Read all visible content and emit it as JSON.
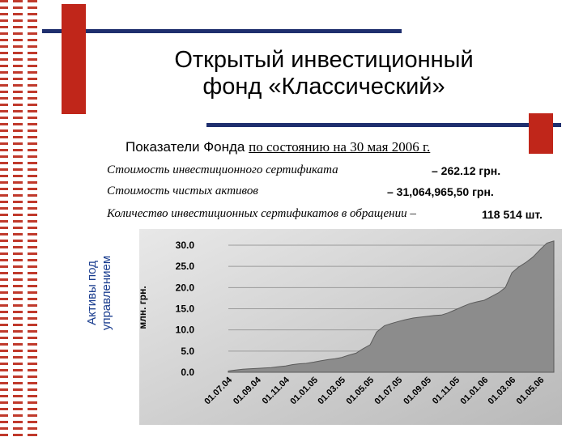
{
  "slide": {
    "title_line1": "Открытый инвестиционный",
    "title_line2": "фонд «Классический»",
    "subtitle_part1": "Показатели Фонда ",
    "subtitle_part2": "по состоянию на 30 мая 2006 г."
  },
  "indicators": [
    {
      "label": "Стоимость инвестиционного сертификата",
      "value": "– 262.12  грн."
    },
    {
      "label": "Стоимость чистых активов",
      "value": "– 31,064,965,50 грн."
    },
    {
      "label": "Количество инвестиционных сертификатов в обращении –",
      "value": "118 514 шт."
    }
  ],
  "side_label": {
    "line1": "Активы под",
    "line2": "управлением"
  },
  "chart_data": {
    "type": "area",
    "title": "",
    "ylabel": "млн. грн.",
    "xlabel": "",
    "ylim": [
      0,
      30
    ],
    "yticks": [
      "0.0",
      "5.0",
      "10.0",
      "15.0",
      "20.0",
      "25.0",
      "30.0"
    ],
    "xticks": [
      "01.07.04",
      "01.09.04",
      "01.11.04",
      "01.01.05",
      "01.03.05",
      "01.05.05",
      "01.07.05",
      "01.09.05",
      "01.11.05",
      "01.01.06",
      "01.03.06",
      "01.05.06"
    ],
    "grid": true,
    "series": [
      {
        "x": [
          "01.07.04",
          "15.07.04",
          "01.08.04",
          "15.08.04",
          "01.09.04",
          "15.09.04",
          "01.10.04",
          "15.10.04",
          "01.11.04",
          "15.11.04",
          "01.12.04",
          "15.12.04",
          "01.01.05",
          "15.01.05",
          "01.02.05",
          "15.02.05",
          "01.03.05",
          "15.03.05",
          "01.04.05",
          "15.04.05",
          "01.05.05",
          "15.05.05",
          "01.06.05",
          "15.06.05",
          "01.07.05",
          "15.07.05",
          "01.08.05",
          "15.08.05",
          "01.09.05",
          "15.09.05",
          "01.10.05",
          "15.10.05",
          "01.11.05",
          "15.11.05",
          "01.12.05",
          "15.12.05",
          "01.01.06",
          "15.01.06",
          "01.02.06",
          "15.02.06",
          "01.03.06",
          "15.03.06",
          "01.04.06",
          "15.04.06",
          "01.05.06",
          "15.05.06",
          "30.05.06"
        ],
        "values": [
          0.3,
          0.5,
          0.7,
          0.8,
          0.9,
          1.0,
          1.1,
          1.3,
          1.5,
          1.8,
          2.0,
          2.1,
          2.4,
          2.7,
          3.0,
          3.2,
          3.5,
          4.0,
          4.5,
          5.5,
          6.5,
          9.5,
          11.0,
          11.5,
          12.0,
          12.4,
          12.8,
          13.0,
          13.2,
          13.4,
          13.5,
          14.0,
          14.8,
          15.5,
          16.2,
          16.6,
          17.0,
          17.8,
          18.8,
          20.0,
          23.5,
          24.8,
          26.0,
          27.2,
          29.0,
          30.5,
          31.0
        ]
      }
    ]
  }
}
